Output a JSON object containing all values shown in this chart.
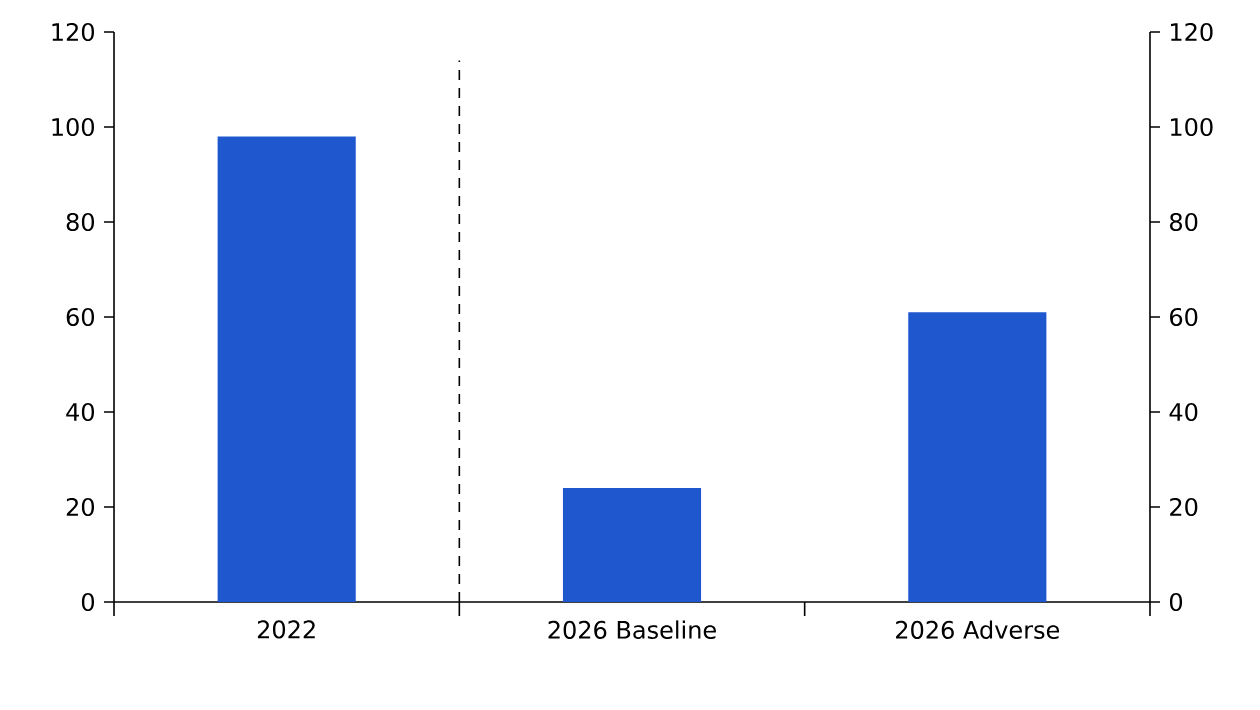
{
  "chart_data": {
    "type": "bar",
    "categories": [
      "2022",
      "2026 Baseline",
      "2026 Adverse"
    ],
    "series": [
      {
        "color": "#1f57cf",
        "values": [
          98,
          24,
          61
        ]
      }
    ],
    "ylim": [
      0,
      120
    ],
    "yticks": [
      0,
      20,
      40,
      60,
      80,
      100,
      120
    ],
    "y2lim": [
      0,
      120
    ],
    "y2ticks": [
      0,
      20,
      40,
      60,
      80,
      100,
      120
    ],
    "grid": false
  }
}
